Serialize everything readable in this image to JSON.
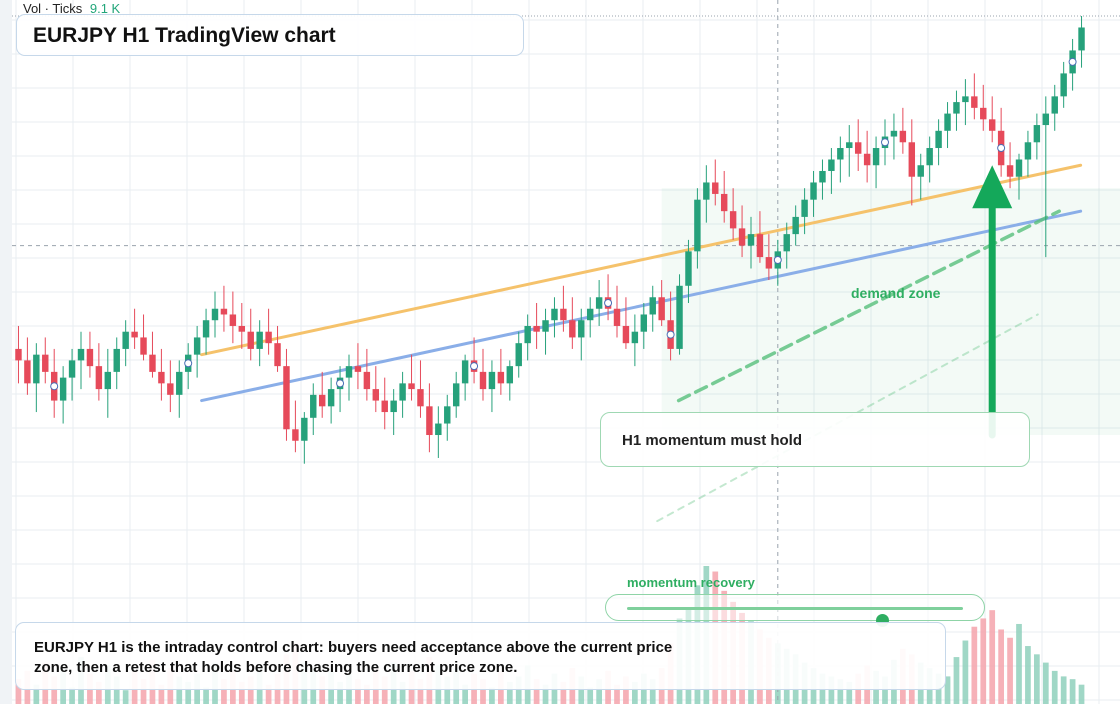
{
  "header": {
    "volume_label": "Vol · Ticks",
    "volume_value": "9.1 K",
    "title": "EURJPY H1 TradingView chart"
  },
  "annotations": {
    "demand_zone": "demand zone",
    "momentum_card": "H1 momentum must hold",
    "momentum_recovery": "momentum recovery",
    "recovery_level": 0.76,
    "note": "EURJPY H1 is the intraday control chart: buyers need acceptance above the current price zone, then a retest that holds before chasing the current price zone."
  },
  "colors": {
    "up": "#26a17b",
    "down": "#e64a5a",
    "up_volume": "#8fd0bc",
    "down_volume": "#f4a3ab",
    "orange_trendline": "#f5c26b",
    "blue_trendline": "#8aaee8",
    "green_accent": "#2fae62",
    "grid": "#e8edf2"
  },
  "chart_data": {
    "type": "candlestick",
    "symbol": "EURJPY",
    "timeframe": "H1",
    "ylim": [
      0,
      100
    ],
    "volume_ylim": [
      0,
      100
    ],
    "candles": [
      [
        42,
        46,
        36,
        40
      ],
      [
        40,
        44,
        34,
        36
      ],
      [
        36,
        43,
        31,
        41
      ],
      [
        41,
        44,
        36,
        38
      ],
      [
        38,
        42,
        30,
        33
      ],
      [
        33,
        39,
        29,
        37
      ],
      [
        37,
        42,
        33,
        40
      ],
      [
        40,
        45,
        35,
        42
      ],
      [
        42,
        45,
        37,
        39
      ],
      [
        39,
        43,
        33,
        35
      ],
      [
        35,
        42,
        30,
        38
      ],
      [
        38,
        44,
        35,
        42
      ],
      [
        42,
        47,
        39,
        45
      ],
      [
        45,
        49,
        42,
        44
      ],
      [
        44,
        48,
        40,
        41
      ],
      [
        41,
        45,
        37,
        38
      ],
      [
        38,
        42,
        33,
        36
      ],
      [
        36,
        40,
        31,
        34
      ],
      [
        34,
        40,
        30,
        38
      ],
      [
        38,
        43,
        35,
        41
      ],
      [
        41,
        46,
        37,
        44
      ],
      [
        44,
        49,
        41,
        47
      ],
      [
        47,
        52,
        44,
        49
      ],
      [
        49,
        53,
        45,
        48
      ],
      [
        48,
        52,
        43,
        46
      ],
      [
        46,
        50,
        42,
        45
      ],
      [
        45,
        49,
        40,
        42
      ],
      [
        42,
        47,
        39,
        45
      ],
      [
        45,
        49,
        41,
        43
      ],
      [
        43,
        46,
        38,
        39
      ],
      [
        39,
        42,
        26,
        28
      ],
      [
        28,
        33,
        24,
        26
      ],
      [
        26,
        31,
        22,
        30
      ],
      [
        30,
        36,
        27,
        34
      ],
      [
        34,
        38,
        30,
        32
      ],
      [
        32,
        37,
        29,
        35
      ],
      [
        35,
        39,
        31,
        37
      ],
      [
        37,
        41,
        33,
        39
      ],
      [
        39,
        43,
        35,
        38
      ],
      [
        38,
        42,
        33,
        35
      ],
      [
        35,
        39,
        31,
        33
      ],
      [
        33,
        37,
        28,
        31
      ],
      [
        31,
        35,
        27,
        33
      ],
      [
        33,
        38,
        30,
        36
      ],
      [
        36,
        41,
        33,
        35
      ],
      [
        35,
        40,
        30,
        32
      ],
      [
        32,
        36,
        24,
        27
      ],
      [
        27,
        32,
        23,
        29
      ],
      [
        29,
        34,
        26,
        32
      ],
      [
        32,
        38,
        30,
        36
      ],
      [
        36,
        41,
        33,
        40
      ],
      [
        40,
        44,
        36,
        38
      ],
      [
        38,
        42,
        33,
        35
      ],
      [
        35,
        40,
        31,
        38
      ],
      [
        38,
        42,
        34,
        36
      ],
      [
        36,
        40,
        33,
        39
      ],
      [
        39,
        45,
        37,
        43
      ],
      [
        43,
        48,
        40,
        46
      ],
      [
        46,
        50,
        42,
        45
      ],
      [
        45,
        49,
        41,
        47
      ],
      [
        47,
        51,
        44,
        49
      ],
      [
        49,
        53,
        45,
        47
      ],
      [
        47,
        51,
        42,
        44
      ],
      [
        44,
        49,
        40,
        47
      ],
      [
        47,
        51,
        44,
        49
      ],
      [
        49,
        54,
        46,
        51
      ],
      [
        51,
        55,
        47,
        49
      ],
      [
        49,
        53,
        44,
        46
      ],
      [
        46,
        51,
        42,
        43
      ],
      [
        43,
        48,
        39,
        45
      ],
      [
        45,
        50,
        42,
        48
      ],
      [
        48,
        53,
        45,
        51
      ],
      [
        51,
        54,
        46,
        47
      ],
      [
        47,
        52,
        40,
        42
      ],
      [
        42,
        55,
        41,
        53
      ],
      [
        53,
        61,
        50,
        59
      ],
      [
        59,
        70,
        56,
        68
      ],
      [
        68,
        74,
        64,
        71
      ],
      [
        71,
        75,
        67,
        69
      ],
      [
        69,
        73,
        64,
        66
      ],
      [
        66,
        70,
        61,
        63
      ],
      [
        63,
        67,
        58,
        60
      ],
      [
        60,
        65,
        56,
        62
      ],
      [
        62,
        66,
        57,
        58
      ],
      [
        58,
        62,
        54,
        56
      ],
      [
        56,
        61,
        53,
        59
      ],
      [
        59,
        64,
        56,
        62
      ],
      [
        62,
        67,
        60,
        65
      ],
      [
        65,
        70,
        62,
        68
      ],
      [
        68,
        73,
        65,
        71
      ],
      [
        71,
        75,
        68,
        73
      ],
      [
        73,
        77,
        69,
        75
      ],
      [
        75,
        79,
        71,
        77
      ],
      [
        77,
        81,
        72,
        78
      ],
      [
        78,
        82,
        73,
        76
      ],
      [
        76,
        80,
        71,
        74
      ],
      [
        74,
        79,
        70,
        77
      ],
      [
        77,
        82,
        74,
        79
      ],
      [
        79,
        83,
        75,
        80
      ],
      [
        80,
        84,
        76,
        78
      ],
      [
        78,
        82,
        67,
        72
      ],
      [
        72,
        76,
        68,
        74
      ],
      [
        74,
        79,
        71,
        77
      ],
      [
        77,
        82,
        74,
        80
      ],
      [
        80,
        85,
        77,
        83
      ],
      [
        83,
        87,
        80,
        85
      ],
      [
        85,
        89,
        81,
        86
      ],
      [
        86,
        90,
        82,
        84
      ],
      [
        84,
        88,
        80,
        82
      ],
      [
        82,
        86,
        78,
        80
      ],
      [
        80,
        84,
        72,
        74
      ],
      [
        74,
        78,
        70,
        72
      ],
      [
        72,
        76,
        68,
        75
      ],
      [
        75,
        80,
        72,
        78
      ],
      [
        78,
        83,
        75,
        81
      ],
      [
        81,
        86,
        58,
        83
      ],
      [
        83,
        88,
        80,
        86
      ],
      [
        86,
        92,
        84,
        90
      ],
      [
        90,
        96,
        87,
        94
      ],
      [
        94,
        100,
        91,
        98
      ]
    ],
    "volume": [
      18,
      24,
      14,
      30,
      20,
      26,
      12,
      34,
      22,
      16,
      28,
      20,
      10,
      24,
      18,
      32,
      14,
      26,
      20,
      16,
      22,
      12,
      30,
      18,
      24,
      16,
      20,
      28,
      14,
      22,
      36,
      44,
      30,
      26,
      20,
      24,
      16,
      22,
      18,
      14,
      26,
      20,
      30,
      16,
      24,
      18,
      34,
      28,
      20,
      26,
      14,
      22,
      18,
      12,
      24,
      16,
      20,
      28,
      18,
      14,
      22,
      16,
      26,
      20,
      12,
      18,
      24,
      14,
      20,
      16,
      22,
      18,
      26,
      44,
      62,
      70,
      86,
      100,
      96,
      82,
      74,
      66,
      60,
      54,
      48,
      44,
      40,
      36,
      30,
      26,
      22,
      20,
      18,
      16,
      22,
      28,
      24,
      20,
      32,
      40,
      36,
      30,
      26,
      22,
      20,
      34,
      46,
      56,
      62,
      68,
      54,
      48,
      58,
      42,
      36,
      30,
      24,
      20,
      18,
      14
    ],
    "trendlines": [
      {
        "name": "orange",
        "from": [
          0.175,
          41
        ],
        "to": [
          0.995,
          74
        ]
      },
      {
        "name": "blue",
        "from": [
          0.175,
          33
        ],
        "to": [
          0.995,
          66
        ]
      },
      {
        "name": "green-dash",
        "from": [
          0.62,
          33
        ],
        "to": [
          0.975,
          66
        ]
      },
      {
        "name": "green-dot",
        "from": [
          0.6,
          12
        ],
        "to": [
          0.955,
          48
        ]
      }
    ],
    "markers": [
      4,
      19,
      36,
      51,
      66,
      73,
      85,
      97,
      110,
      118
    ],
    "arrow": {
      "x_index": 109,
      "from": 27,
      "to": 74
    },
    "hlines": [
      {
        "value": 100,
        "style": "dotted"
      },
      {
        "value": 60,
        "style": "dashed"
      }
    ],
    "vline": {
      "x_index": 85,
      "style": "dashed"
    },
    "demand_zone": {
      "from_index": 72,
      "to_index": 124,
      "from": 27,
      "to": 70
    },
    "grid": true
  }
}
